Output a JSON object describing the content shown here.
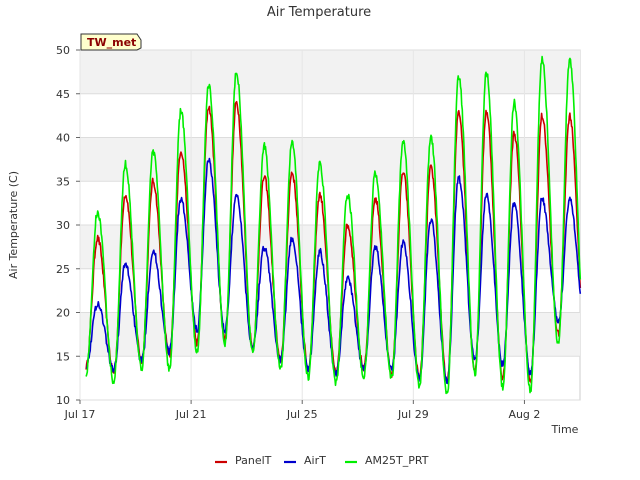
{
  "chart_data": {
    "type": "line",
    "title": "Air Temperature",
    "badge": "TW_met",
    "xlabel": "Time",
    "ylabel": "Air Temperature (C)",
    "ylim": [
      10,
      50
    ],
    "yticks": [
      10,
      15,
      20,
      25,
      30,
      35,
      40,
      45,
      50
    ],
    "xlim": [
      "2023-07-17",
      "2023-08-04"
    ],
    "xticks": [
      {
        "label": "Jul 17",
        "date": "2023-07-17"
      },
      {
        "label": "Jul 21",
        "date": "2023-07-21"
      },
      {
        "label": "Jul 25",
        "date": "2023-07-25"
      },
      {
        "label": "Jul 29",
        "date": "2023-07-29"
      },
      {
        "label": "Aug 2",
        "date": "2023-08-02"
      }
    ],
    "grid": true,
    "legend_position": "bottom",
    "daily": {
      "dates": [
        "2023-07-17",
        "2023-07-18",
        "2023-07-19",
        "2023-07-20",
        "2023-07-21",
        "2023-07-22",
        "2023-07-23",
        "2023-07-24",
        "2023-07-25",
        "2023-07-26",
        "2023-07-27",
        "2023-07-28",
        "2023-07-29",
        "2023-07-30",
        "2023-07-31",
        "2023-08-01",
        "2023-08-02",
        "2023-08-03"
      ],
      "series": [
        {
          "name": "PanelT",
          "color": "#cc0000",
          "daily_min": [
            13.8,
            13.0,
            14.5,
            15.0,
            16.5,
            17.0,
            16.0,
            14.5,
            13.5,
            13.0,
            13.5,
            13.0,
            12.5,
            12.0,
            13.5,
            12.5,
            12.0,
            17.5
          ],
          "daily_max": [
            28.5,
            33.5,
            35.0,
            38.5,
            43.5,
            44.0,
            35.5,
            36.0,
            33.5,
            30.0,
            33.0,
            36.0,
            36.5,
            43.0,
            43.0,
            40.5,
            42.5,
            42.5
          ]
        },
        {
          "name": "AirT",
          "color": "#0000cc",
          "daily_min": [
            14.0,
            13.5,
            14.5,
            15.5,
            18.0,
            18.0,
            16.0,
            14.5,
            13.5,
            13.0,
            13.5,
            13.5,
            12.5,
            12.0,
            14.5,
            14.0,
            13.0,
            19.0
          ],
          "daily_max": [
            21.0,
            25.5,
            27.0,
            33.0,
            37.5,
            33.5,
            27.5,
            28.5,
            27.0,
            24.0,
            27.5,
            28.0,
            30.5,
            35.5,
            33.5,
            32.5,
            33.0,
            33.0
          ]
        },
        {
          "name": "AM25T_PRT",
          "color": "#00ee00",
          "daily_min": [
            13.0,
            12.0,
            13.5,
            13.5,
            15.5,
            16.5,
            15.5,
            13.5,
            12.5,
            12.0,
            12.5,
            12.5,
            11.5,
            10.5,
            13.0,
            11.5,
            11.0,
            16.5
          ],
          "daily_max": [
            31.5,
            37.0,
            38.5,
            43.0,
            46.0,
            47.5,
            39.0,
            39.5,
            37.0,
            33.5,
            36.0,
            39.5,
            40.0,
            47.0,
            47.5,
            44.0,
            49.0,
            49.0
          ]
        }
      ]
    }
  }
}
